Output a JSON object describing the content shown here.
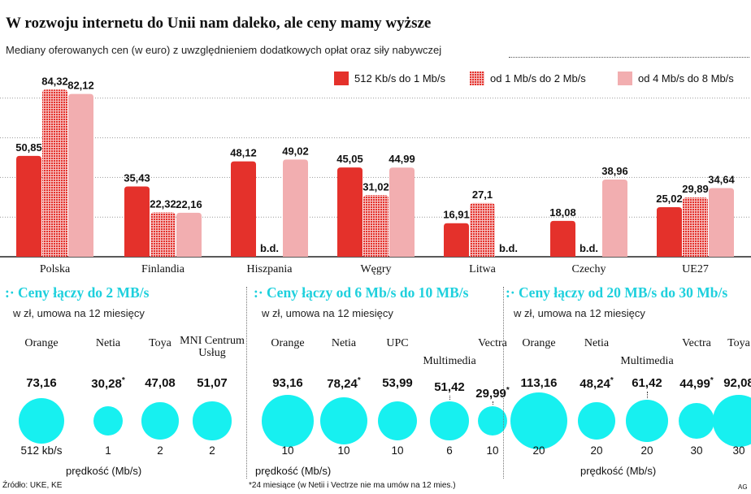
{
  "header": {
    "title": "W rozwoju internetu do Unii nam daleko, ale ceny mamy wyższe",
    "subtitle": "Mediany oferowanych cen (w euro) z uwzględnieniem dodatkowych opłat oraz siły nabywczej"
  },
  "colors": {
    "red": "#e4312b",
    "pink": "#f2aeb0",
    "cyan": "#17f0f0",
    "heading": "#1ed0dd"
  },
  "chart_data": {
    "type": "bar",
    "title": "W rozwoju internetu do Unii nam daleko, ale ceny mamy wyższe",
    "categories": [
      "Polska",
      "Finlandia",
      "Hiszpania",
      "Węgry",
      "Litwa",
      "Czechy",
      "UE27"
    ],
    "series": [
      {
        "name": "512 Kb/s do 1 Mb/s",
        "values": [
          50.85,
          35.43,
          48.12,
          45.05,
          16.91,
          18.08,
          25.02
        ],
        "labels": [
          "50,85",
          "35,43",
          "48,12",
          "45,05",
          "16,91",
          "18,08",
          "25,02"
        ]
      },
      {
        "name": "od 1 Mb/s do 2 Mb/s",
        "values": [
          84.32,
          22.32,
          null,
          31.02,
          27.1,
          null,
          29.89
        ],
        "labels": [
          "84,32",
          "22,32",
          "b.d.",
          "31,02",
          "27,1",
          "b.d.",
          "29,89"
        ]
      },
      {
        "name": "od 4 Mb/s do 8 Mb/s",
        "values": [
          82.12,
          22.16,
          49.02,
          44.99,
          null,
          38.96,
          34.64
        ],
        "labels": [
          "82,12",
          "22,16",
          "49,02",
          "44,99",
          "b.d.",
          "38,96",
          "34,64"
        ]
      }
    ],
    "ylim": [
      0,
      90
    ],
    "gridlines": [
      20,
      40,
      60,
      80
    ],
    "missing_label": "b.d."
  },
  "panels": [
    {
      "title": ":· Ceny łączy do 2 MB/s",
      "subtitle": "w zł, umowa na 12 miesięcy",
      "axis_label": "prędkość (Mb/s)",
      "items": [
        {
          "provider": "Orange",
          "price": 73.16,
          "price_label": "73,16",
          "star": "",
          "speed": "512 kb/s"
        },
        {
          "provider": "Netia",
          "price": 30.28,
          "price_label": "30,28",
          "star": "*",
          "speed": "1"
        },
        {
          "provider": "Toya",
          "price": 47.08,
          "price_label": "47,08",
          "star": "",
          "speed": "2"
        },
        {
          "provider": "MNI Centrum Usług",
          "price": 51.07,
          "price_label": "51,07",
          "star": "",
          "speed": "2"
        }
      ]
    },
    {
      "title": ":· Ceny łączy od 6 Mb/s do 10 MB/s",
      "subtitle": "w zł, umowa na 12 miesięcy",
      "axis_label": "prędkość (Mb/s)",
      "items": [
        {
          "provider": "Orange",
          "price": 93.16,
          "price_label": "93,16",
          "star": "",
          "speed": "10"
        },
        {
          "provider": "Netia",
          "price": 78.24,
          "price_label": "78,24",
          "star": "*",
          "speed": "10"
        },
        {
          "provider": "UPC",
          "price": 53.99,
          "price_label": "53,99",
          "star": "",
          "speed": "10"
        },
        {
          "provider": "Multimedia",
          "price": 51.42,
          "price_label": "51,42",
          "star": "",
          "speed": "6"
        },
        {
          "provider": "Vectra",
          "price": 29.99,
          "price_label": "29,99",
          "star": "*",
          "speed": "10"
        }
      ]
    },
    {
      "title": ":· Ceny łączy od 20 MB/s do 30 Mb/s",
      "subtitle": "w zł, umowa na 12 miesięcy",
      "axis_label": "prędkość (Mb/s)",
      "items": [
        {
          "provider": "Orange",
          "price": 113.16,
          "price_label": "113,16",
          "star": "",
          "speed": "20"
        },
        {
          "provider": "Netia",
          "price": 48.24,
          "price_label": "48,24",
          "star": "*",
          "speed": "20"
        },
        {
          "provider": "Multimedia",
          "price": 61.42,
          "price_label": "61,42",
          "star": "",
          "speed": "20"
        },
        {
          "provider": "Vectra",
          "price": 44.99,
          "price_label": "44,99",
          "star": "*",
          "speed": "30"
        },
        {
          "provider": "Toya",
          "price": 92.08,
          "price_label": "92,08",
          "star": "",
          "speed": "30"
        }
      ]
    }
  ],
  "footer": {
    "source": "Źródło: UKE, KE",
    "note": "*24 miesiące (w Netii i Vectrze nie ma umów na 12 mies.)",
    "author": "AG"
  }
}
